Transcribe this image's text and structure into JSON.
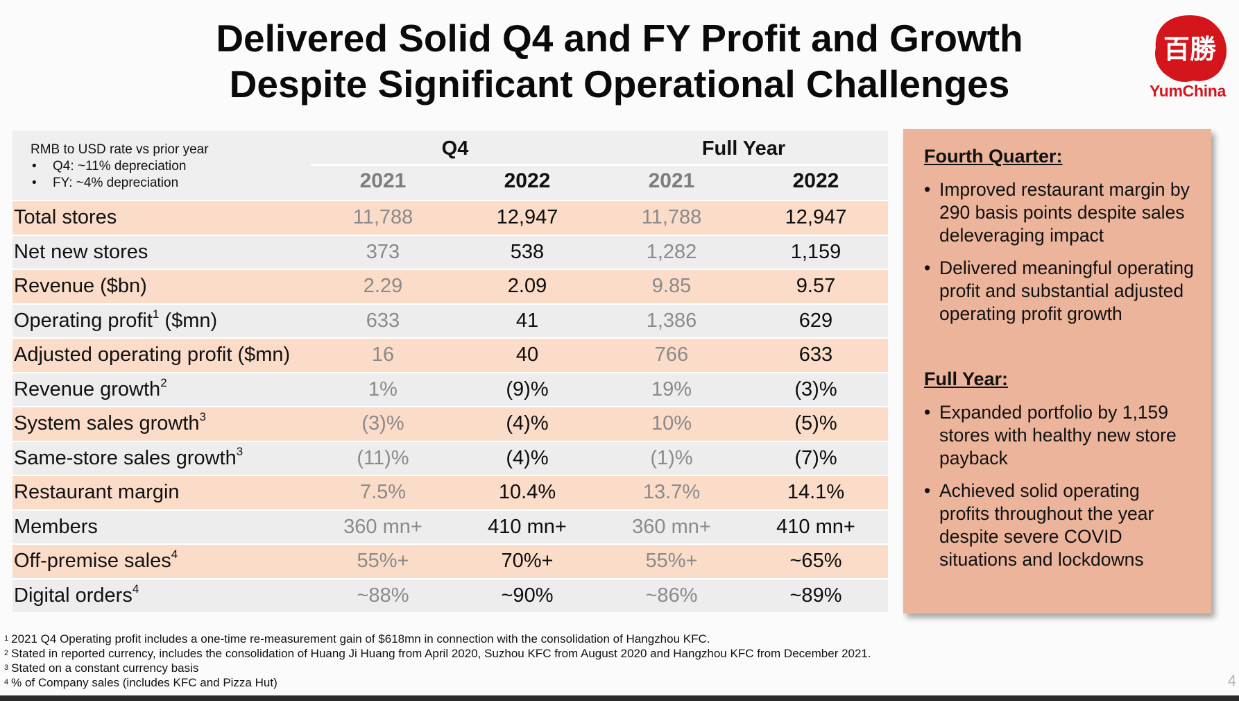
{
  "title": {
    "line1": "Delivered Solid Q4 and FY Profit and Growth",
    "line2": "Despite Significant Operational Challenges"
  },
  "logo": {
    "text": "YumChina",
    "mark": "百勝",
    "color": "#d4151c"
  },
  "table": {
    "rate_note": {
      "heading": "RMB to USD rate vs prior year",
      "bullets": [
        "Q4: ~11% depreciation",
        "FY: ~4% depreciation"
      ]
    },
    "groups": [
      "Q4",
      "Full Year"
    ],
    "years": [
      "2021",
      "2022",
      "2021",
      "2022"
    ],
    "rows": [
      {
        "label": "Total stores",
        "sup": "",
        "values": [
          "11,788",
          "12,947",
          "11,788",
          "12,947"
        ]
      },
      {
        "label": "Net new stores",
        "sup": "",
        "values": [
          "373",
          "538",
          "1,282",
          "1,159"
        ]
      },
      {
        "label": "Revenue ($bn)",
        "sup": "",
        "values": [
          "2.29",
          "2.09",
          "9.85",
          "9.57"
        ]
      },
      {
        "label": "Operating profit",
        "sup": "1",
        "suffix": " ($mn)",
        "values": [
          "633",
          "41",
          "1,386",
          "629"
        ]
      },
      {
        "label": "Adjusted operating profit ($mn)",
        "sup": "",
        "values": [
          "16",
          "40",
          "766",
          "633"
        ]
      },
      {
        "label": "Revenue growth",
        "sup": "2",
        "values": [
          "1%",
          "(9)%",
          "19%",
          "(3)%"
        ]
      },
      {
        "label": "System sales growth",
        "sup": "3",
        "values": [
          "(3)%",
          "(4)%",
          "10%",
          "(5)%"
        ]
      },
      {
        "label": "Same-store sales growth",
        "sup": "3",
        "values": [
          "(11)%",
          "(4)%",
          "(1)%",
          "(7)%"
        ]
      },
      {
        "label": "Restaurant margin",
        "sup": "",
        "values": [
          "7.5%",
          "10.4%",
          "13.7%",
          "14.1%"
        ]
      },
      {
        "label": "Members",
        "sup": "",
        "values": [
          "360 mn+",
          "410 mn+",
          "360 mn+",
          "410 mn+"
        ]
      },
      {
        "label": "Off-premise sales",
        "sup": "4",
        "values": [
          "55%+",
          "70%+",
          "55%+",
          "~65%"
        ]
      },
      {
        "label": "Digital orders",
        "sup": "4",
        "values": [
          "~88%",
          "~90%",
          "~86%",
          "~89%"
        ]
      }
    ]
  },
  "panel": {
    "q4_heading": "Fourth Quarter:",
    "q4_bullets": [
      "Improved restaurant margin by 290 basis points despite sales deleveraging impact",
      "Delivered meaningful operating profit and substantial adjusted operating profit growth"
    ],
    "fy_heading": "Full Year:",
    "fy_bullets": [
      "Expanded portfolio by 1,159 stores with healthy new store payback",
      "Achieved solid operating profits throughout the year despite severe COVID situations and lockdowns"
    ]
  },
  "footnotes": [
    {
      "num": "1",
      "text": "2021 Q4 Operating profit includes a one-time re-measurement gain of $618mn in connection with the consolidation of Hangzhou KFC."
    },
    {
      "num": "2",
      "text": "Stated in reported currency, includes the consolidation of Huang Ji Huang from April 2020, Suzhou KFC from August 2020 and Hangzhou KFC from December 2021."
    },
    {
      "num": "3",
      "text": "Stated on a constant currency basis"
    },
    {
      "num": "4",
      "text": "% of Company sales (includes KFC and Pizza Hut)"
    }
  ],
  "page_number": "4"
}
